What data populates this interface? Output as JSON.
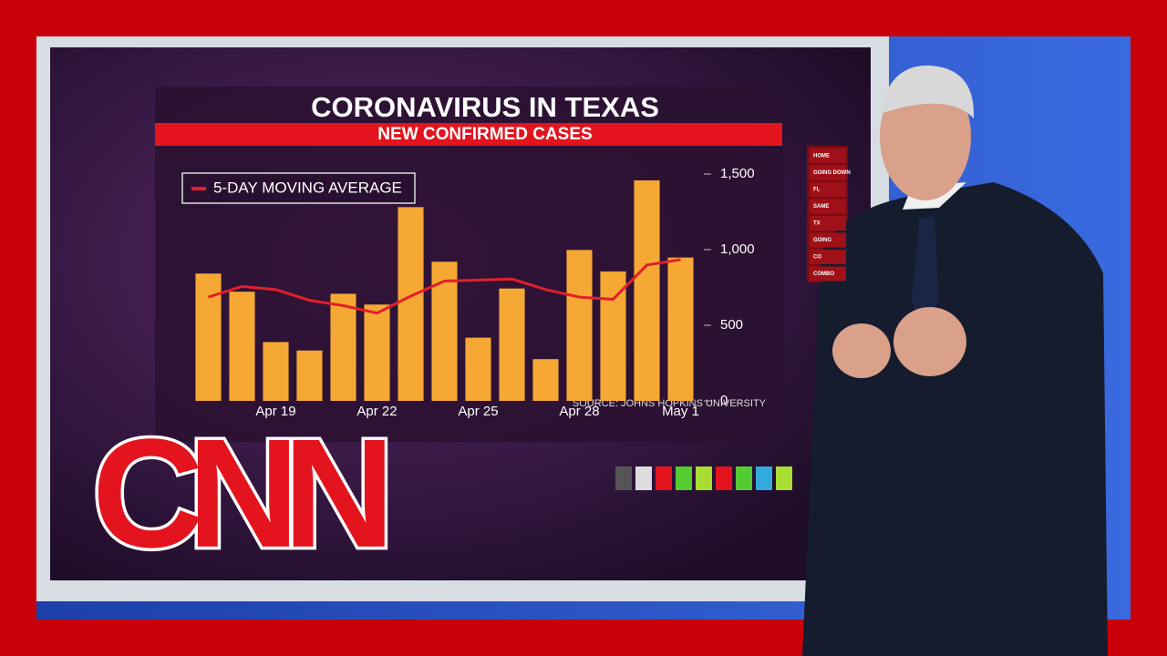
{
  "chart_data": {
    "type": "bar",
    "title": "CORONAVIRUS IN TEXAS",
    "subtitle": "NEW CONFIRMED CASES",
    "categories": [
      null,
      null,
      "Apr 19",
      null,
      null,
      "Apr 22",
      null,
      null,
      "Apr 25",
      null,
      null,
      "Apr 28",
      null,
      null,
      "May 1"
    ],
    "series": [
      {
        "name": "New confirmed cases",
        "color": "#f5a833",
        "values": [
          842,
          722,
          389,
          333,
          708,
          637,
          1281,
          920,
          418,
          743,
          276,
          998,
          856,
          1458,
          948
        ]
      },
      {
        "name": "5-DAY MOVING AVERAGE",
        "type": "line",
        "color": "#e0202a",
        "values": [
          686,
          757,
          736,
          665,
          630,
          580,
          693,
          792,
          799,
          806,
          736,
          686,
          672,
          898,
          934
        ]
      }
    ],
    "ylim": [
      0,
      1500
    ],
    "yticks": [
      0,
      500,
      {
        "value": 1000,
        "label": "1,000"
      },
      {
        "value": 1500,
        "label": "1,500"
      }
    ],
    "grid": false,
    "source": "SOURCE: JOHNS HOPKINS UNIVERSITY"
  },
  "menu": [
    "HOME",
    "GOING DOWN",
    "FL",
    "SAME",
    "TX",
    "GOING",
    "CO",
    "COMBO"
  ],
  "logo": "CNN"
}
